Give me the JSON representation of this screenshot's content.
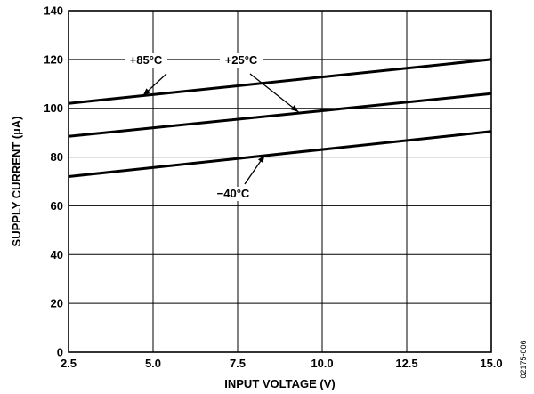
{
  "chart_data": {
    "type": "line",
    "xlabel": "INPUT VOLTAGE (V)",
    "ylabel": "SUPPLY CURRENT (µA)",
    "xlim": [
      2.5,
      15.0
    ],
    "ylim": [
      0,
      140
    ],
    "xticks": [
      "2.5",
      "5.0",
      "7.5",
      "10.0",
      "12.5",
      "15.0"
    ],
    "xtick_values": [
      2.5,
      5.0,
      7.5,
      10.0,
      12.5,
      15.0
    ],
    "yticks": [
      "0",
      "20",
      "40",
      "60",
      "80",
      "100",
      "120",
      "140"
    ],
    "ytick_values": [
      0,
      20,
      40,
      60,
      80,
      100,
      120,
      140
    ],
    "grid": true,
    "series": [
      {
        "name": "+85°C",
        "x": [
          2.5,
          15.0
        ],
        "y": [
          102,
          120
        ]
      },
      {
        "name": "+25°C",
        "x": [
          2.5,
          15.0
        ],
        "y": [
          88.5,
          106
        ]
      },
      {
        "name": "−40°C",
        "x": [
          2.5,
          15.0
        ],
        "y": [
          72,
          90.5
        ]
      }
    ],
    "annotations": [
      {
        "text": "+85°C",
        "series": 0,
        "point": [
          4.7,
          105.2
        ]
      },
      {
        "text": "+25°C",
        "series": 1,
        "point": [
          9.3,
          98.5
        ]
      },
      {
        "text": "−40°C",
        "series": 2,
        "point": [
          8.3,
          80.8
        ]
      }
    ],
    "figure_id": "02175-006"
  }
}
